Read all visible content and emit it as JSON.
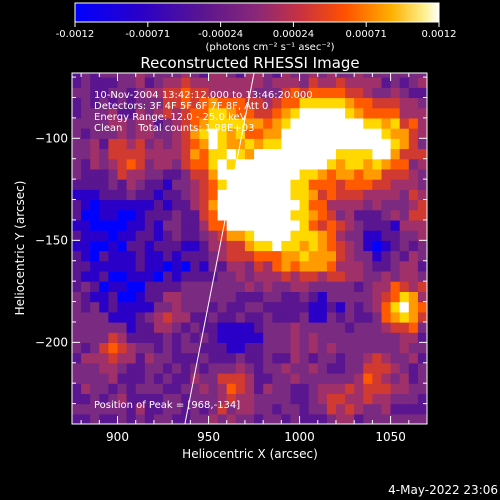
{
  "colorbar": {
    "tick_labels": [
      "-0.0012",
      "-0.00071",
      "-0.00024",
      "0.00024",
      "0.00071",
      "0.0012"
    ],
    "unit_label": "(photons cm⁻² s⁻¹ asec⁻²)",
    "range": [
      -0.0012,
      0.0012
    ]
  },
  "plot": {
    "title": "Reconstructed RHESSI Image",
    "info_lines": [
      "10-Nov-2004 13:42:12.000 to 13:46:20.000",
      "Detectors: 3F 4F 5F 6F 7F 8F, Att 0",
      "Energy Range: 12.0 - 25.0 keV",
      "Clean     Total counts: 1.98E+03"
    ],
    "peak_label": "Position of Peak = [968,-134]",
    "footer_date": "4-May-2022 23:06"
  },
  "chart_data": {
    "type": "heatmap",
    "title": "Reconstructed RHESSI Image",
    "xlabel": "Heliocentric X (arcsec)",
    "ylabel": "Heliocentric Y (arcsec)",
    "xlim": [
      875,
      1070
    ],
    "ylim": [
      -240,
      -68
    ],
    "x_ticks": [
      900,
      950,
      1000,
      1050
    ],
    "y_ticks": [
      -100,
      -150,
      -200
    ],
    "x_tick_labels": [
      "900",
      "950",
      "1000",
      "1050"
    ],
    "y_tick_labels": [
      "−100",
      "−150",
      "−200"
    ],
    "peak": [
      968,
      -134
    ],
    "limb_line": [
      [
        937,
        -240
      ],
      [
        975,
        -68
      ]
    ],
    "colormap": [
      "#0000ff",
      "#2a00c8",
      "#5a1590",
      "#7a2a80",
      "#a0306a",
      "#d03a30",
      "#ff5a00",
      "#ff9b00",
      "#ffd800",
      "#ffffff"
    ]
  }
}
